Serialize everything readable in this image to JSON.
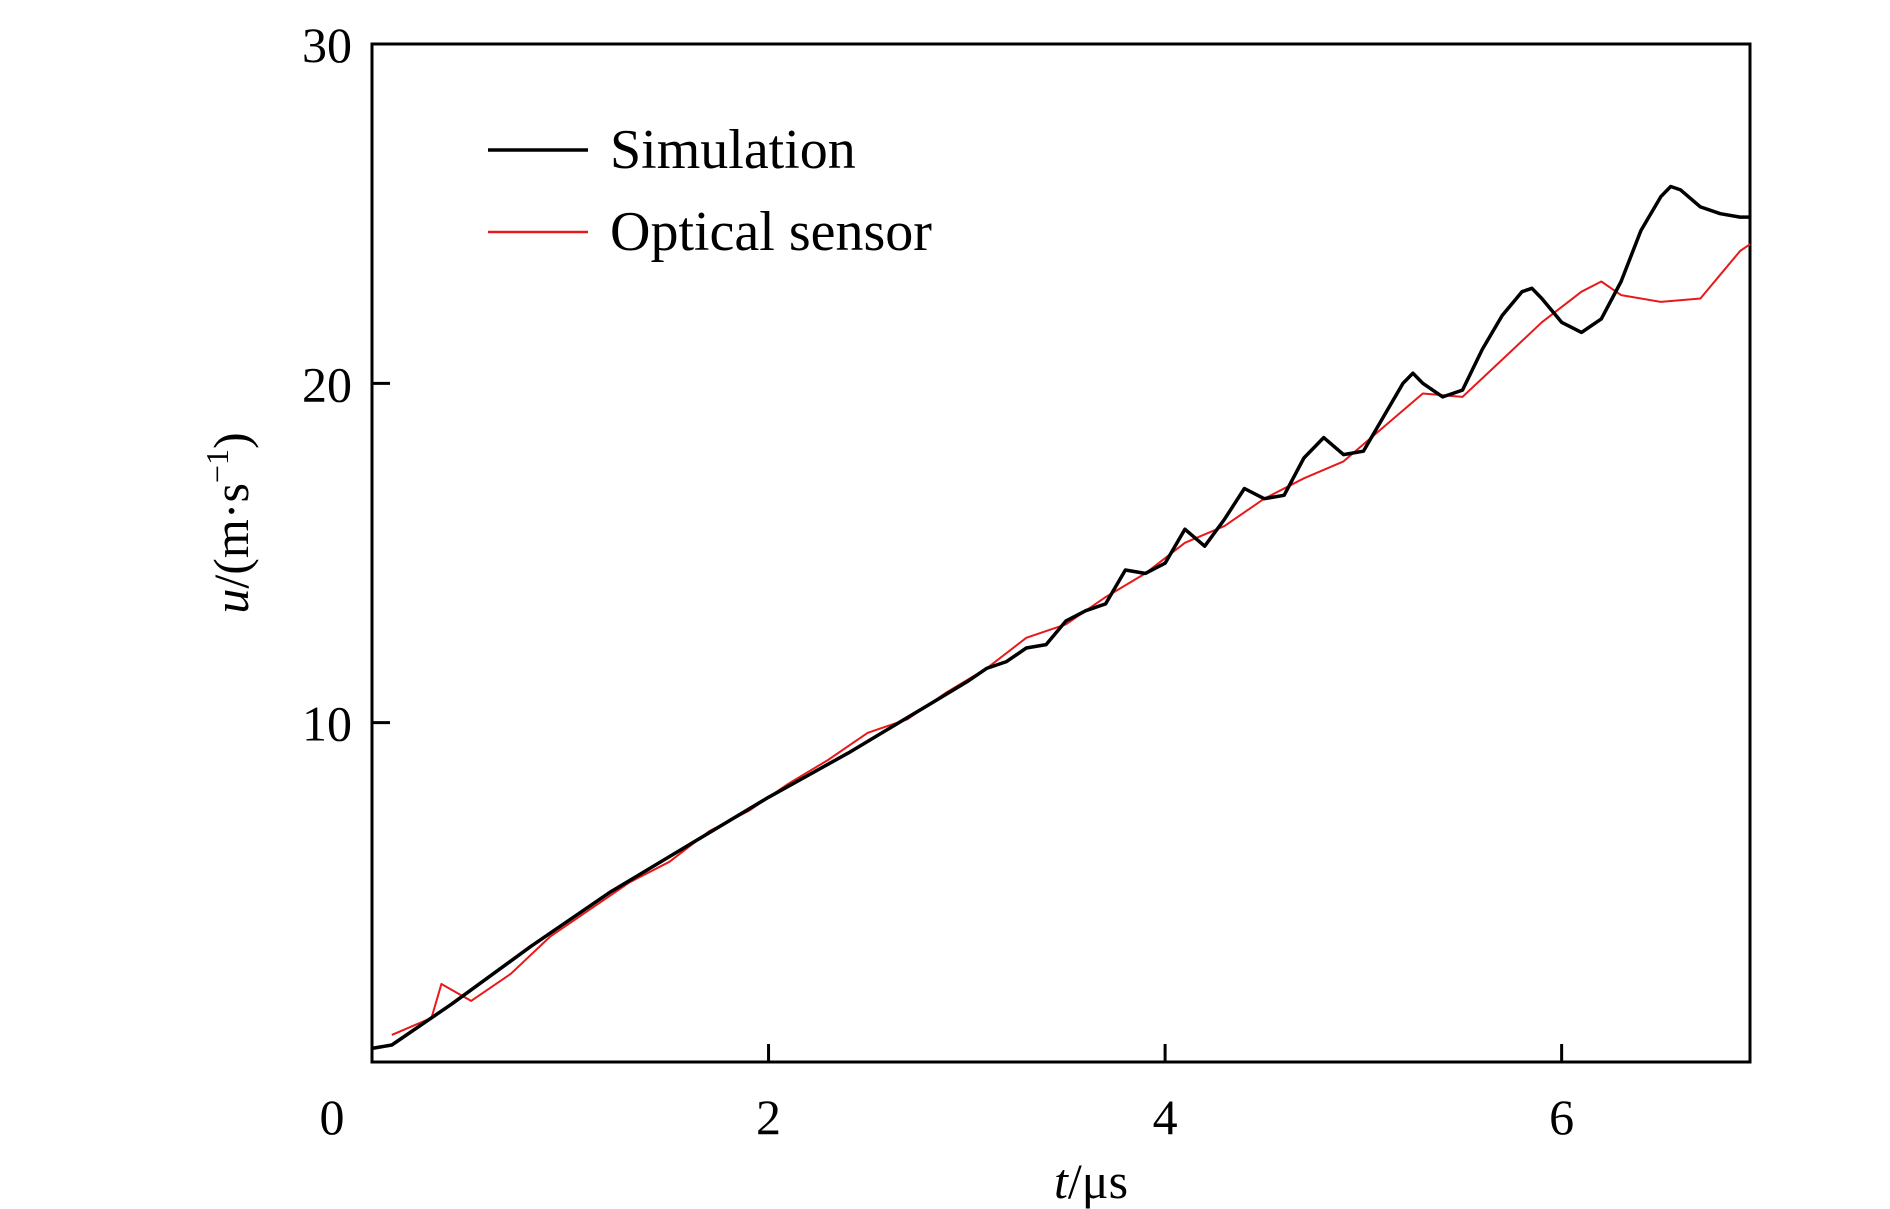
{
  "chart_data": {
    "type": "line",
    "xlabel": {
      "var": "t",
      "unit": "/μs"
    },
    "ylabel": {
      "var": "u",
      "unit_open": "/(m·s",
      "unit_sup": "−1",
      "unit_close": ")"
    },
    "xlim": [
      0,
      6.95
    ],
    "ylim": [
      0,
      30
    ],
    "xticks": [
      0,
      2,
      4,
      6
    ],
    "yticks": [
      10,
      20,
      30
    ],
    "xtick_labels": [
      "0",
      "2",
      "4",
      "6"
    ],
    "ytick_labels": [
      "10",
      "20",
      "30"
    ],
    "grid": false,
    "legend_position": "top-left",
    "series": [
      {
        "name": "Simulation",
        "color": "#000000",
        "x": [
          0.0,
          0.1,
          0.4,
          0.8,
          1.2,
          1.6,
          2.0,
          2.4,
          2.8,
          3.0,
          3.1,
          3.2,
          3.3,
          3.4,
          3.5,
          3.6,
          3.7,
          3.8,
          3.9,
          4.0,
          4.1,
          4.2,
          4.3,
          4.4,
          4.5,
          4.6,
          4.7,
          4.8,
          4.9,
          5.0,
          5.1,
          5.2,
          5.25,
          5.3,
          5.4,
          5.5,
          5.6,
          5.7,
          5.8,
          5.85,
          5.9,
          6.0,
          6.1,
          6.2,
          6.3,
          6.4,
          6.5,
          6.55,
          6.6,
          6.7,
          6.8,
          6.9,
          6.95
        ],
        "y": [
          0.4,
          0.5,
          1.7,
          3.4,
          5.0,
          6.4,
          7.8,
          9.1,
          10.5,
          11.2,
          11.6,
          11.8,
          12.2,
          12.3,
          13.0,
          13.3,
          13.5,
          14.5,
          14.4,
          14.7,
          15.7,
          15.2,
          16.0,
          16.9,
          16.6,
          16.7,
          17.8,
          18.4,
          17.9,
          18.0,
          19.0,
          20.0,
          20.3,
          20.0,
          19.6,
          19.8,
          21.0,
          22.0,
          22.7,
          22.8,
          22.5,
          21.8,
          21.5,
          21.9,
          23.0,
          24.5,
          25.5,
          25.8,
          25.7,
          25.2,
          25.0,
          24.9,
          24.9
        ]
      },
      {
        "name": "Optical sensor",
        "color": "#e8191b",
        "x": [
          0.1,
          0.3,
          0.35,
          0.5,
          0.7,
          0.9,
          1.1,
          1.3,
          1.5,
          1.7,
          1.9,
          2.1,
          2.3,
          2.5,
          2.7,
          2.9,
          3.1,
          3.3,
          3.5,
          3.7,
          3.9,
          4.1,
          4.3,
          4.5,
          4.7,
          4.9,
          5.1,
          5.3,
          5.5,
          5.7,
          5.9,
          6.1,
          6.2,
          6.3,
          6.5,
          6.7,
          6.8,
          6.9,
          6.95
        ],
        "y": [
          0.8,
          1.3,
          2.3,
          1.8,
          2.6,
          3.7,
          4.5,
          5.3,
          5.9,
          6.8,
          7.4,
          8.2,
          8.9,
          9.7,
          10.1,
          10.9,
          11.6,
          12.5,
          12.9,
          13.7,
          14.4,
          15.3,
          15.8,
          16.6,
          17.2,
          17.7,
          18.7,
          19.7,
          19.6,
          20.7,
          21.8,
          22.7,
          23.0,
          22.6,
          22.4,
          22.5,
          23.2,
          23.9,
          24.1
        ]
      }
    ]
  }
}
